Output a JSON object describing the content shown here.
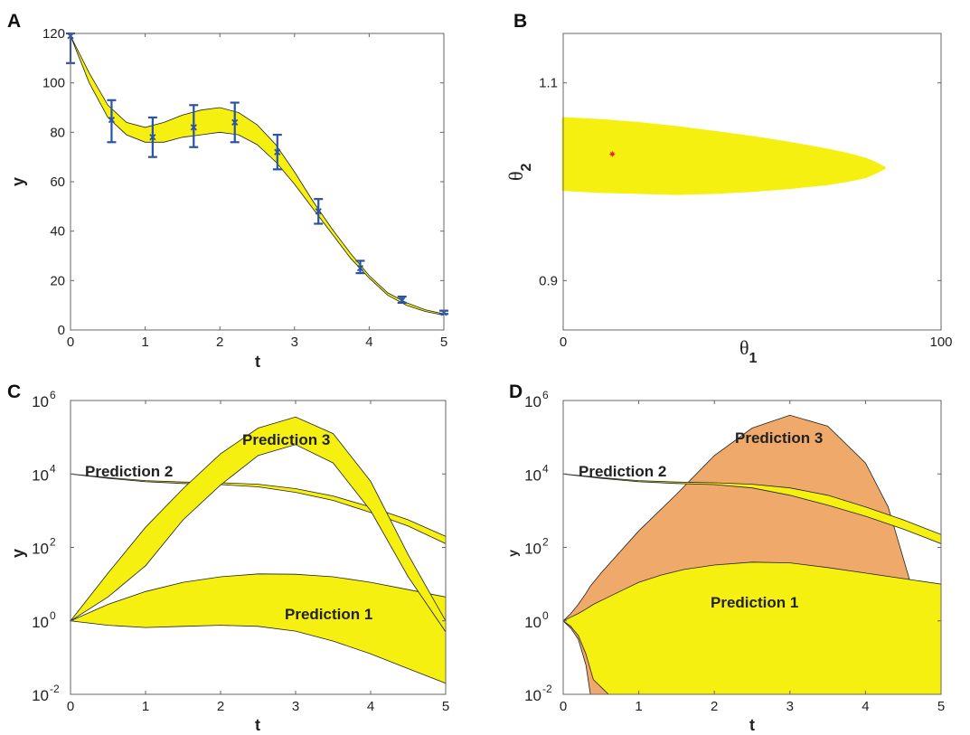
{
  "colors": {
    "band": "#f5f010",
    "band_edge": "#222222",
    "error_bar": "#2a52a5",
    "prediction3_d": "#efa96a",
    "marker": "#e02020",
    "frame": "#666666"
  },
  "chart_data": [
    {
      "panel": "A",
      "type": "line",
      "xlabel": "t",
      "ylabel": "y",
      "xlim": [
        0,
        5
      ],
      "ylim": [
        0,
        120
      ],
      "xticks": [
        "0",
        "1",
        "2",
        "3",
        "4",
        "5"
      ],
      "yticks": [
        "0",
        "20",
        "40",
        "60",
        "80",
        "100",
        "120"
      ],
      "band": {
        "x": [
          0,
          0.25,
          0.5,
          0.75,
          1.0,
          1.25,
          1.5,
          1.75,
          2.0,
          2.25,
          2.5,
          2.75,
          3.0,
          3.25,
          3.5,
          3.75,
          4.0,
          4.25,
          4.5,
          4.75,
          5.0
        ],
        "lower": [
          119,
          100,
          86,
          79,
          76,
          76,
          78,
          79,
          80,
          79,
          75,
          68,
          59,
          49,
          39,
          29,
          21,
          14,
          10,
          7.5,
          6
        ],
        "upper": [
          119,
          104,
          91,
          84,
          82,
          84,
          87,
          89,
          90,
          88,
          83,
          75,
          64,
          52,
          41,
          31,
          22,
          15,
          11,
          8.2,
          6.5
        ]
      },
      "data_points": [
        {
          "t": 0,
          "y": 119,
          "lo": 108,
          "hi": 120
        },
        {
          "t": 0.55,
          "y": 85,
          "lo": 76,
          "hi": 93
        },
        {
          "t": 1.1,
          "y": 78,
          "lo": 70,
          "hi": 86
        },
        {
          "t": 1.65,
          "y": 82,
          "lo": 74,
          "hi": 91
        },
        {
          "t": 2.2,
          "y": 84,
          "lo": 76,
          "hi": 92
        },
        {
          "t": 2.77,
          "y": 72,
          "lo": 65,
          "hi": 79
        },
        {
          "t": 3.32,
          "y": 48,
          "lo": 43,
          "hi": 53
        },
        {
          "t": 3.88,
          "y": 25,
          "lo": 23,
          "hi": 28
        },
        {
          "t": 4.44,
          "y": 12,
          "lo": 11,
          "hi": 13.5
        },
        {
          "t": 5.0,
          "y": 7,
          "lo": 6.5,
          "hi": 7.8
        }
      ]
    },
    {
      "panel": "B",
      "type": "scatter",
      "xlabel_sym": "θ",
      "xlabel_sub": "1",
      "ylabel_sym": "θ",
      "ylabel_sub": "2",
      "xlim": [
        0,
        100
      ],
      "ylim": [
        0.85,
        1.15
      ],
      "xticks": [
        {
          "value": 0,
          "label": "0"
        },
        {
          "value": 100,
          "label": "100"
        }
      ],
      "yticks": [
        {
          "value": 0.9,
          "label": "0.9"
        },
        {
          "value": 1.1,
          "label": "1.1"
        }
      ],
      "region": {
        "x": [
          0,
          10,
          20,
          30,
          40,
          50,
          60,
          70,
          75,
          80,
          83
        ],
        "upper": [
          1.064,
          1.062,
          1.059,
          1.055,
          1.05,
          1.045,
          1.039,
          1.032,
          1.028,
          1.023,
          1.018
        ],
        "lower": [
          0.992,
          0.99,
          0.989,
          0.988,
          0.989,
          0.991,
          0.994,
          0.998,
          1.001,
          1.005,
          1.01
        ]
      },
      "estimate": {
        "x": 13,
        "y": 1.028
      }
    },
    {
      "panel": "C",
      "type": "area",
      "xlabel": "t",
      "ylabel": "y",
      "xlim": [
        0,
        5
      ],
      "ylim_log10": [
        -2,
        6
      ],
      "yscale": "log",
      "xticks": [
        "0",
        "1",
        "2",
        "3",
        "4",
        "5"
      ],
      "yticks": [
        {
          "base": "10",
          "exp": "-2",
          "value": -2
        },
        {
          "base": "10",
          "exp": "0",
          "value": 0
        },
        {
          "base": "10",
          "exp": "2",
          "value": 2
        },
        {
          "base": "10",
          "exp": "4",
          "value": 4
        },
        {
          "base": "10",
          "exp": "6",
          "value": 6
        }
      ],
      "series": [
        {
          "name": "Prediction 1",
          "x": [
            0,
            0.5,
            1,
            1.5,
            2,
            2.5,
            3,
            3.5,
            4,
            4.5,
            5
          ],
          "upper_log10": [
            0,
            0.45,
            0.8,
            1.05,
            1.2,
            1.28,
            1.27,
            1.2,
            1.05,
            0.85,
            0.65
          ],
          "lower_log10": [
            0,
            -0.12,
            -0.18,
            -0.15,
            -0.12,
            -0.15,
            -0.28,
            -0.55,
            -0.9,
            -1.3,
            -1.7
          ]
        },
        {
          "name": "Prediction 2",
          "x": [
            0,
            0.5,
            1,
            1.5,
            2,
            2.5,
            3,
            3.5,
            4,
            4.5,
            5
          ],
          "upper_log10": [
            4.0,
            3.9,
            3.82,
            3.78,
            3.76,
            3.72,
            3.6,
            3.4,
            3.1,
            2.75,
            2.3
          ],
          "lower_log10": [
            4.0,
            3.88,
            3.79,
            3.74,
            3.71,
            3.65,
            3.5,
            3.28,
            2.95,
            2.58,
            2.1
          ]
        },
        {
          "name": "Prediction 3",
          "x": [
            0,
            0.5,
            1,
            1.5,
            2,
            2.5,
            3,
            3.5,
            4,
            4.5,
            5
          ],
          "upper_log10": [
            0,
            1.3,
            2.55,
            3.6,
            4.55,
            5.25,
            5.55,
            5.1,
            3.8,
            1.8,
            0
          ],
          "lower_log10": [
            0,
            0.65,
            1.5,
            2.75,
            3.7,
            4.5,
            4.8,
            4.3,
            3.0,
            1.2,
            -0.3
          ]
        }
      ]
    },
    {
      "panel": "D",
      "type": "area",
      "xlabel": "t",
      "ylabel": "y",
      "xlim": [
        0,
        5
      ],
      "ylim_log10": [
        -2,
        6
      ],
      "yscale": "log",
      "xticks": [
        "0",
        "1",
        "2",
        "3",
        "4",
        "5"
      ],
      "yticks": [
        {
          "base": "10",
          "exp": "-2",
          "value": -2
        },
        {
          "base": "10",
          "exp": "0",
          "value": 0
        },
        {
          "base": "10",
          "exp": "2",
          "value": 2
        },
        {
          "base": "10",
          "exp": "4",
          "value": 4
        },
        {
          "base": "10",
          "exp": "6",
          "value": 6
        }
      ],
      "series": [
        {
          "name": "Prediction 3",
          "x": [
            0,
            0.1,
            0.2,
            0.3,
            0.36,
            0.5,
            1,
            1.5,
            2,
            2.5,
            3,
            3.5,
            4,
            4.3,
            4.6,
            5
          ],
          "upper_log10": [
            0,
            0.2,
            0.45,
            0.75,
            0.95,
            1.3,
            2.45,
            3.45,
            4.5,
            5.25,
            5.6,
            5.3,
            4.3,
            3.1,
            1.0,
            1.0
          ],
          "lower_log10": [
            0,
            -0.2,
            -0.5,
            -1.2,
            -2.0,
            null,
            null,
            null,
            null,
            null,
            null,
            null,
            null,
            null,
            null,
            null
          ]
        },
        {
          "name": "Prediction 1",
          "x": [
            0,
            0.1,
            0.2,
            0.3,
            0.4,
            0.6,
            0.8,
            1,
            1.3,
            1.6,
            2,
            2.5,
            3,
            3.5,
            4,
            4.5,
            5
          ],
          "upper_log10": [
            0,
            0.1,
            0.2,
            0.32,
            0.45,
            0.65,
            0.85,
            1.05,
            1.25,
            1.4,
            1.52,
            1.6,
            1.58,
            1.45,
            1.3,
            1.15,
            1.0
          ],
          "lower_log10": [
            0,
            -0.15,
            -0.4,
            -0.9,
            -1.6,
            -2.0,
            -2.0,
            -2.0,
            -2.0,
            -2.0,
            -2.0,
            -2.0,
            -2.0,
            -2.0,
            -2.0,
            -2.0,
            -2.0
          ]
        },
        {
          "name": "Prediction 2",
          "x": [
            0,
            0.5,
            1,
            1.5,
            2,
            2.5,
            3,
            3.5,
            4,
            4.5,
            5
          ],
          "upper_log10": [
            4.0,
            3.9,
            3.82,
            3.78,
            3.76,
            3.72,
            3.62,
            3.42,
            3.1,
            2.75,
            2.35
          ],
          "lower_log10": [
            4.0,
            3.88,
            3.79,
            3.74,
            3.71,
            3.62,
            3.42,
            3.15,
            2.85,
            2.5,
            2.1
          ]
        }
      ]
    }
  ],
  "annotations": {
    "A": {
      "panel_label": "A"
    },
    "B": {
      "panel_label": "B"
    },
    "C": {
      "panel_label": "C",
      "pred1": "Prediction 1",
      "pred2": "Prediction 2",
      "pred3": "Prediction 3"
    },
    "D": {
      "panel_label": "D",
      "pred1": "Prediction 1",
      "pred2": "Prediction 2",
      "pred3": "Prediction 3"
    }
  }
}
